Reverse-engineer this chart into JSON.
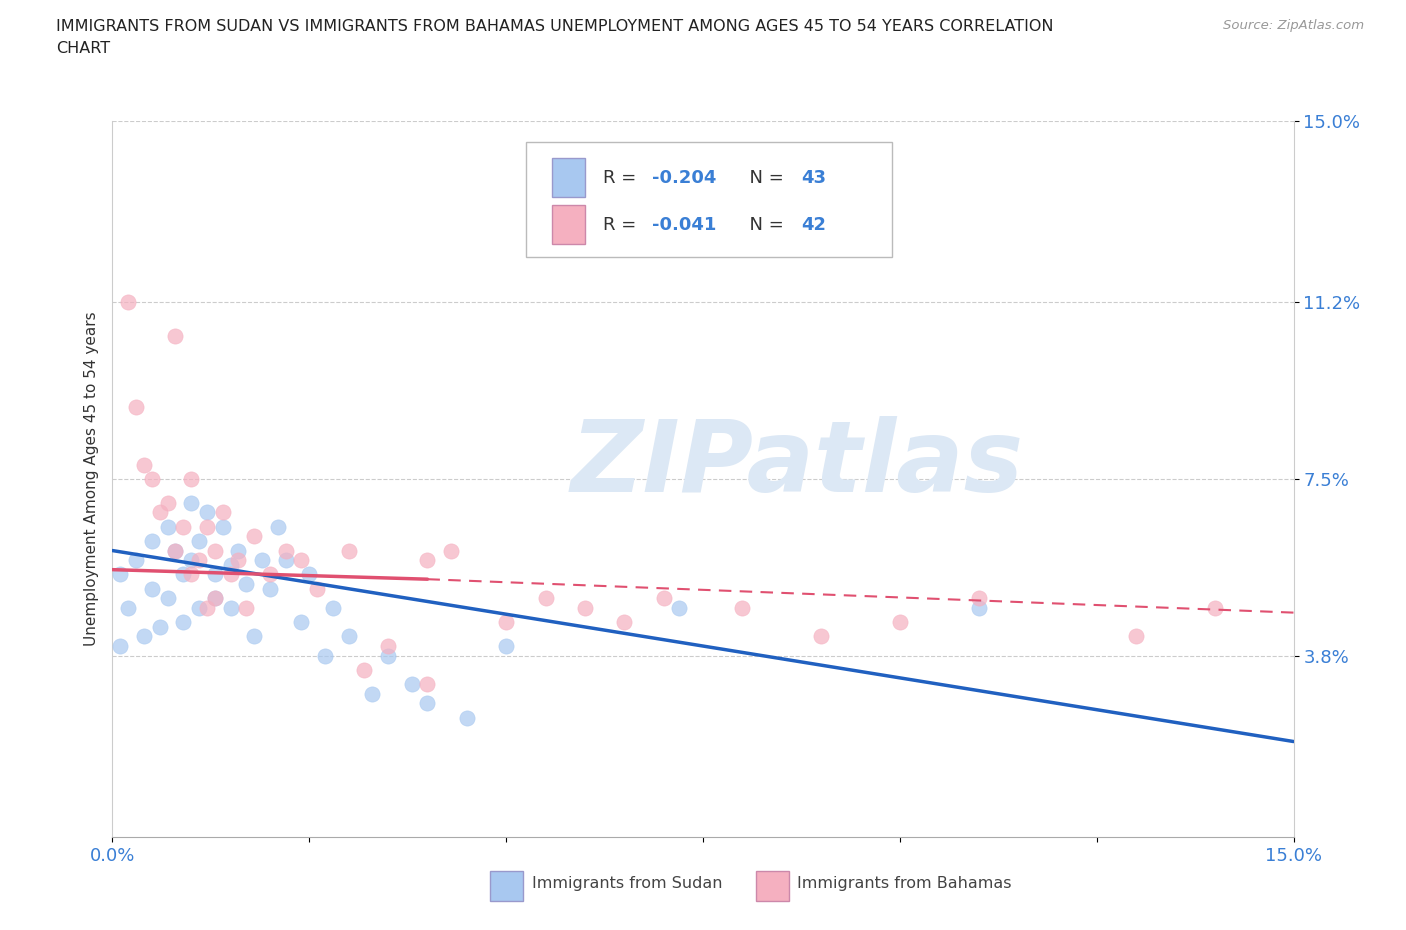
{
  "title": "IMMIGRANTS FROM SUDAN VS IMMIGRANTS FROM BAHAMAS UNEMPLOYMENT AMONG AGES 45 TO 54 YEARS CORRELATION\nCHART",
  "source": "Source: ZipAtlas.com",
  "ylabel": "Unemployment Among Ages 45 to 54 years",
  "xlim": [
    0.0,
    0.15
  ],
  "ylim": [
    0.0,
    0.15
  ],
  "ytick_positions": [
    0.038,
    0.075,
    0.112,
    0.15
  ],
  "ytick_labels": [
    "3.8%",
    "7.5%",
    "11.2%",
    "15.0%"
  ],
  "color_sudan": "#a8c8f0",
  "color_bahamas": "#f5b0c0",
  "color_line_sudan": "#2060c0",
  "color_line_bahamas": "#e05070",
  "color_accent": "#3a7fd5",
  "watermark_text": "ZIPatlas",
  "watermark_color": "#dce8f5",
  "grid_color": "#cccccc",
  "background_color": "#ffffff",
  "sudan_line_x0": 0.0,
  "sudan_line_y0": 0.06,
  "sudan_line_x1": 0.15,
  "sudan_line_y1": 0.02,
  "bahamas_line_solid_x0": 0.0,
  "bahamas_line_solid_y0": 0.056,
  "bahamas_line_solid_x1": 0.04,
  "bahamas_line_solid_y1": 0.054,
  "bahamas_line_dash_x0": 0.04,
  "bahamas_line_dash_y0": 0.054,
  "bahamas_line_dash_x1": 0.15,
  "bahamas_line_dash_y1": 0.047,
  "sudan_x": [
    0.001,
    0.001,
    0.002,
    0.003,
    0.004,
    0.005,
    0.005,
    0.006,
    0.007,
    0.007,
    0.008,
    0.009,
    0.009,
    0.01,
    0.01,
    0.011,
    0.011,
    0.012,
    0.013,
    0.013,
    0.014,
    0.015,
    0.015,
    0.016,
    0.017,
    0.018,
    0.019,
    0.02,
    0.021,
    0.022,
    0.024,
    0.025,
    0.027,
    0.028,
    0.03,
    0.033,
    0.035,
    0.038,
    0.04,
    0.045,
    0.05,
    0.072,
    0.11
  ],
  "sudan_y": [
    0.055,
    0.04,
    0.048,
    0.058,
    0.042,
    0.062,
    0.052,
    0.044,
    0.065,
    0.05,
    0.06,
    0.055,
    0.045,
    0.07,
    0.058,
    0.062,
    0.048,
    0.068,
    0.055,
    0.05,
    0.065,
    0.057,
    0.048,
    0.06,
    0.053,
    0.042,
    0.058,
    0.052,
    0.065,
    0.058,
    0.045,
    0.055,
    0.038,
    0.048,
    0.042,
    0.03,
    0.038,
    0.032,
    0.028,
    0.025,
    0.04,
    0.048,
    0.048
  ],
  "bahamas_x": [
    0.002,
    0.003,
    0.004,
    0.005,
    0.006,
    0.007,
    0.008,
    0.009,
    0.01,
    0.01,
    0.011,
    0.012,
    0.013,
    0.013,
    0.014,
    0.015,
    0.016,
    0.017,
    0.018,
    0.02,
    0.022,
    0.024,
    0.026,
    0.03,
    0.032,
    0.035,
    0.04,
    0.04,
    0.043,
    0.05,
    0.055,
    0.06,
    0.065,
    0.07,
    0.08,
    0.09,
    0.1,
    0.11,
    0.13,
    0.14,
    0.008,
    0.012
  ],
  "bahamas_y": [
    0.112,
    0.09,
    0.078,
    0.075,
    0.068,
    0.07,
    0.06,
    0.065,
    0.055,
    0.075,
    0.058,
    0.065,
    0.06,
    0.05,
    0.068,
    0.055,
    0.058,
    0.048,
    0.063,
    0.055,
    0.06,
    0.058,
    0.052,
    0.06,
    0.035,
    0.04,
    0.058,
    0.032,
    0.06,
    0.045,
    0.05,
    0.048,
    0.045,
    0.05,
    0.048,
    0.042,
    0.045,
    0.05,
    0.042,
    0.048,
    0.105,
    0.048
  ]
}
